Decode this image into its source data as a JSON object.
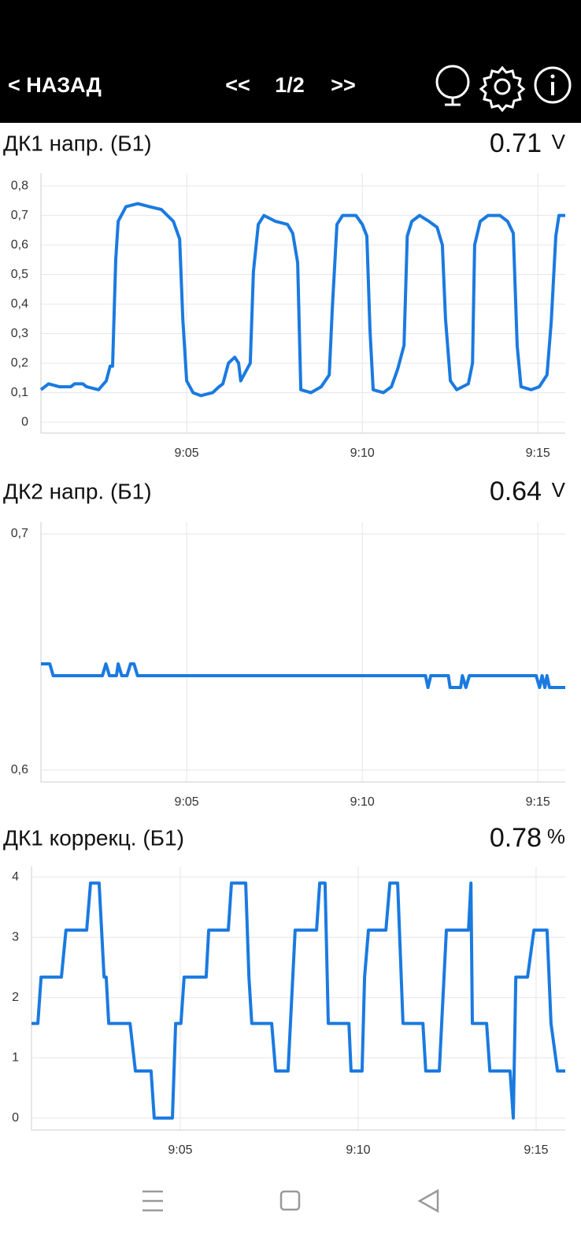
{
  "header": {
    "back": "< НАЗАД",
    "prev": "<<",
    "page": "1/2",
    "next": ">>"
  },
  "chart_data": [
    {
      "type": "line",
      "title": "ДК1 напр. (Б1)",
      "current": 0.71,
      "unit": "V",
      "color": "#1a7ae0",
      "grid": true,
      "x": [
        540.85,
        541.07,
        541.37,
        541.7,
        541.81,
        542.04,
        542.15,
        542.49,
        542.71,
        542.82,
        542.89,
        542.98,
        543.05,
        543.27,
        543.61,
        543.94,
        544.28,
        544.62,
        544.8,
        544.89,
        545.0,
        545.18,
        545.4,
        545.74,
        545.92,
        546.03,
        546.19,
        546.37,
        546.48,
        546.54,
        546.81,
        546.9,
        547.04,
        547.2,
        547.53,
        547.87,
        548.02,
        548.16,
        548.25,
        548.54,
        548.83,
        549.06,
        549.15,
        549.28,
        549.44,
        549.82,
        550.0,
        550.13,
        550.22,
        550.31,
        550.6,
        550.83,
        551.01,
        551.19,
        551.28,
        551.41,
        551.63,
        551.9,
        552.13,
        552.28,
        552.37,
        552.51,
        552.69,
        553.02,
        553.14,
        553.2,
        553.36,
        553.58,
        553.92,
        554.14,
        554.3,
        554.41,
        554.52,
        554.81,
        555.04,
        555.26,
        555.38,
        555.51,
        555.6,
        555.78
      ],
      "values": [
        0.11,
        0.13,
        0.12,
        0.12,
        0.13,
        0.13,
        0.12,
        0.11,
        0.14,
        0.19,
        0.19,
        0.55,
        0.68,
        0.73,
        0.74,
        0.73,
        0.72,
        0.68,
        0.62,
        0.35,
        0.14,
        0.1,
        0.09,
        0.1,
        0.12,
        0.13,
        0.2,
        0.22,
        0.2,
        0.14,
        0.2,
        0.51,
        0.67,
        0.7,
        0.68,
        0.67,
        0.64,
        0.54,
        0.11,
        0.1,
        0.12,
        0.16,
        0.39,
        0.67,
        0.7,
        0.7,
        0.67,
        0.63,
        0.31,
        0.11,
        0.1,
        0.12,
        0.18,
        0.26,
        0.63,
        0.68,
        0.7,
        0.68,
        0.66,
        0.6,
        0.35,
        0.14,
        0.11,
        0.13,
        0.2,
        0.6,
        0.68,
        0.7,
        0.7,
        0.68,
        0.64,
        0.26,
        0.12,
        0.11,
        0.12,
        0.16,
        0.34,
        0.63,
        0.7,
        0.7
      ],
      "xlim": [
        540.85,
        555.78
      ],
      "ylim": [
        -0.037,
        0.843
      ],
      "xticks": [
        {
          "value": 545,
          "label": "9:05"
        },
        {
          "value": 550,
          "label": "9:10"
        },
        {
          "value": 555,
          "label": "9:15"
        }
      ],
      "yticks": [
        0,
        {
          "value": 0.1,
          "label": "0,1"
        },
        {
          "value": 0.2,
          "label": "0,2"
        },
        {
          "value": 0.3,
          "label": "0,3"
        },
        {
          "value": 0.4,
          "label": "0,4"
        },
        {
          "value": 0.5,
          "label": "0,5"
        },
        {
          "value": 0.6,
          "label": "0,6"
        },
        {
          "value": 0.7,
          "label": "0,7"
        },
        {
          "value": 0.8,
          "label": "0,8"
        }
      ]
    },
    {
      "type": "line",
      "title": "ДК2 напр. (Б1)",
      "current": 0.64,
      "unit": "V",
      "color": "#1a7ae0",
      "grid": true,
      "x": [
        540.85,
        541.1,
        541.2,
        542.6,
        542.7,
        542.8,
        543.0,
        543.05,
        543.15,
        543.3,
        543.4,
        543.5,
        543.6,
        551.8,
        551.87,
        551.95,
        552.45,
        552.5,
        552.8,
        552.85,
        552.95,
        553.05,
        554.95,
        555.05,
        555.12,
        555.2,
        555.26,
        555.33,
        555.78
      ],
      "values": [
        0.645,
        0.645,
        0.64,
        0.64,
        0.645,
        0.64,
        0.64,
        0.645,
        0.64,
        0.64,
        0.645,
        0.645,
        0.64,
        0.64,
        0.635,
        0.64,
        0.64,
        0.635,
        0.635,
        0.64,
        0.635,
        0.64,
        0.64,
        0.635,
        0.64,
        0.635,
        0.64,
        0.635,
        0.635
      ],
      "xlim": [
        540.85,
        555.78
      ],
      "ylim": [
        0.595,
        0.705
      ],
      "xticks": [
        {
          "value": 545,
          "label": "9:05"
        },
        {
          "value": 550,
          "label": "9:10"
        },
        {
          "value": 555,
          "label": "9:15"
        }
      ],
      "yticks": [
        {
          "value": 0.6,
          "label": "0,6"
        },
        {
          "value": 0.7,
          "label": "0,7"
        }
      ]
    },
    {
      "type": "line",
      "title": "ДК1 коррекц. (Б1)",
      "current": 0.78,
      "unit": "%",
      "color": "#1a7ae0",
      "grid": true,
      "x": [
        540.82,
        541.0,
        541.09,
        541.66,
        541.79,
        542.37,
        542.48,
        542.72,
        542.86,
        542.92,
        542.99,
        543.59,
        543.74,
        544.18,
        544.27,
        544.78,
        544.87,
        545.02,
        545.11,
        545.73,
        545.8,
        546.35,
        546.44,
        546.84,
        546.93,
        547.01,
        547.57,
        547.68,
        548.03,
        548.23,
        548.83,
        548.92,
        549.07,
        549.16,
        549.74,
        549.8,
        550.11,
        550.18,
        550.29,
        550.78,
        550.89,
        551.11,
        551.26,
        551.82,
        551.9,
        552.28,
        552.48,
        553.1,
        553.17,
        553.21,
        553.61,
        553.7,
        554.27,
        554.36,
        554.43,
        554.76,
        554.94,
        555.31,
        555.42,
        555.6,
        555.82
      ],
      "values": [
        1.57,
        1.57,
        2.34,
        2.34,
        3.12,
        3.12,
        3.9,
        3.9,
        2.34,
        2.34,
        1.57,
        1.57,
        0.78,
        0.78,
        0,
        0,
        1.57,
        1.57,
        2.34,
        2.34,
        3.12,
        3.12,
        3.9,
        3.9,
        2.34,
        1.57,
        1.57,
        0.78,
        0.78,
        3.12,
        3.12,
        3.9,
        3.9,
        1.57,
        1.57,
        0.78,
        0.78,
        2.34,
        3.12,
        3.12,
        3.9,
        3.9,
        1.57,
        1.57,
        0.78,
        0.78,
        3.12,
        3.12,
        3.9,
        1.57,
        1.57,
        0.78,
        0.78,
        0,
        2.34,
        2.34,
        3.12,
        3.12,
        1.57,
        0.78,
        0.78
      ],
      "xlim": [
        540.82,
        555.82
      ],
      "ylim": [
        -0.2,
        4.18
      ],
      "xticks": [
        {
          "value": 545,
          "label": "9:05"
        },
        {
          "value": 550,
          "label": "9:10"
        },
        {
          "value": 555,
          "label": "9:15"
        }
      ],
      "yticks": [
        0,
        1,
        2,
        3,
        4
      ]
    }
  ]
}
